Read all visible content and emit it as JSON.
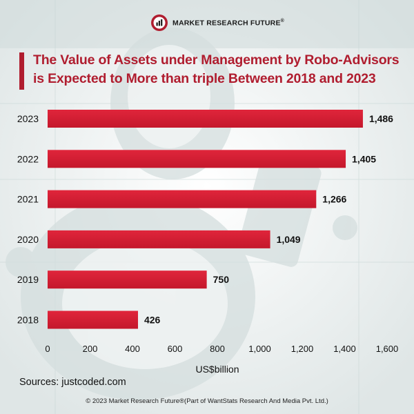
{
  "brand": {
    "name": "MARKET RESEARCH FUTURE",
    "reg": "®"
  },
  "title": {
    "line1": "The Value of Assets under Management by Robo-Advisors",
    "line2": "is Expected to More than triple Between 2018 and 2023"
  },
  "chart_data": {
    "type": "bar",
    "orientation": "horizontal",
    "title": "The Value of Assets under Management by Robo-Advisors is Expected to More than triple Between 2018 and 2023",
    "categories": [
      "2023",
      "2022",
      "2021",
      "2020",
      "2019",
      "2018"
    ],
    "values": [
      1486,
      1405,
      1266,
      1049,
      750,
      426
    ],
    "value_labels": [
      "1,486",
      "1,405",
      "1,266",
      "1,049",
      "750",
      "426"
    ],
    "xlabel": "US$billion",
    "ylabel": "",
    "xlim": [
      0,
      1600
    ],
    "xticks": [
      0,
      200,
      400,
      600,
      800,
      1000,
      1200,
      1400,
      1600
    ],
    "xtick_labels": [
      "0",
      "200",
      "400",
      "600",
      "800",
      "1,000",
      "1,200",
      "1,400",
      "1,600"
    ],
    "bar_color": "#d91f34",
    "grid": false,
    "legend": "none"
  },
  "footer": {
    "sources": "Sources: justcoded.com",
    "copyright": "© 2023 Market Research Future®(Part of WantStats Research And Media Pvt. Ltd.)"
  }
}
